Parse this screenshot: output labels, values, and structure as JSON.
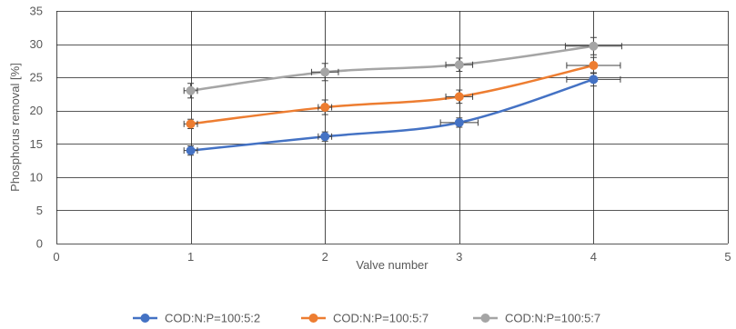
{
  "chart_data": {
    "type": "line",
    "xlabel": "Valve number",
    "ylabel": "Phosphorus removal [%]",
    "xlim": [
      0,
      5
    ],
    "ylim": [
      0,
      35
    ],
    "x_ticks": [
      0,
      1,
      2,
      3,
      4,
      5
    ],
    "y_ticks": [
      0,
      5,
      10,
      15,
      20,
      25,
      30,
      35
    ],
    "grid": {
      "x": true,
      "y": true
    },
    "grid_color": "#1f1f1f",
    "error_bar_color": "#404040",
    "legend": {
      "position": "bottom"
    },
    "smooth_lines": true,
    "markers": "circle",
    "x": [
      1,
      2,
      3,
      4
    ],
    "series": [
      {
        "name": "COD:N:P=100:5:2",
        "color": "#4472C4",
        "values": [
          14.0,
          16.1,
          18.2,
          24.7
        ],
        "y_err": [
          0.7,
          0.7,
          0.7,
          1.0
        ],
        "x_err": [
          0.05,
          0.05,
          0.14,
          0.2
        ]
      },
      {
        "name": "COD:N:P=100:5:7",
        "color": "#ED7D31",
        "values": [
          18.0,
          20.5,
          22.1,
          26.8
        ],
        "y_err": [
          0.7,
          1.1,
          1.0,
          1.2
        ],
        "x_err": [
          0.05,
          0.05,
          0.1,
          0.2
        ]
      },
      {
        "name": "COD:N:P=100:5:7",
        "color": "#A5A5A5",
        "values": [
          23.0,
          25.8,
          26.9,
          29.7
        ],
        "y_err": [
          1.1,
          1.3,
          1.0,
          1.3
        ],
        "x_err": [
          0.05,
          0.1,
          0.1,
          0.21
        ]
      }
    ]
  }
}
